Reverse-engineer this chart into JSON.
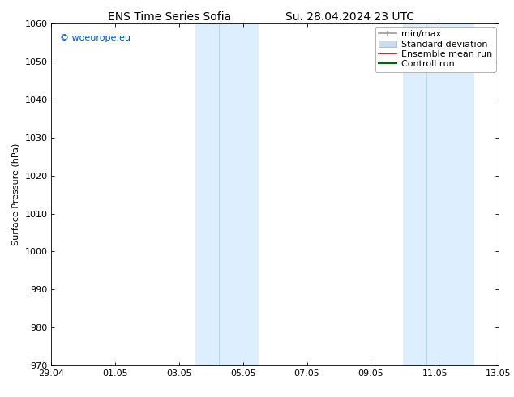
{
  "title_left": "ENS Time Series Sofia",
  "title_right": "Su. 28.04.2024 23 UTC",
  "ylabel": "Surface Pressure (hPa)",
  "xlabel_ticks": [
    "29.04",
    "01.05",
    "03.05",
    "05.05",
    "07.05",
    "09.05",
    "11.05",
    "13.05"
  ],
  "xlabel_tick_positions": [
    0,
    2,
    4,
    6,
    8,
    10,
    12,
    14
  ],
  "ylim": [
    970,
    1060
  ],
  "xlim": [
    0,
    14
  ],
  "yticks": [
    970,
    980,
    990,
    1000,
    1010,
    1020,
    1030,
    1040,
    1050,
    1060
  ],
  "shaded_bands": [
    {
      "xmin": 4.5,
      "xmax": 5.25,
      "color": "#ddeeff"
    },
    {
      "xmin": 5.25,
      "xmax": 6.5,
      "color": "#ddeeff"
    },
    {
      "xmin": 11.0,
      "xmax": 11.75,
      "color": "#ddeeff"
    },
    {
      "xmin": 11.75,
      "xmax": 13.25,
      "color": "#ddeeff"
    }
  ],
  "band_dividers": [
    5.25,
    11.75
  ],
  "watermark_text": "© woeurope.eu",
  "watermark_color": "#0055cc",
  "legend_entries": [
    {
      "label": "min/max",
      "color": "#999999",
      "lw": 1.2,
      "style": "errorbar"
    },
    {
      "label": "Standard deviation",
      "color": "#c8ddf0",
      "lw": 5,
      "style": "rect"
    },
    {
      "label": "Ensemble mean run",
      "color": "#cc0000",
      "lw": 1.2,
      "style": "line"
    },
    {
      "label": "Controll run",
      "color": "#006600",
      "lw": 1.5,
      "style": "line"
    }
  ],
  "background_color": "#ffffff",
  "axes_background_color": "#ffffff",
  "font_size": 8,
  "title_font_size": 10,
  "watermark_font_size": 8
}
